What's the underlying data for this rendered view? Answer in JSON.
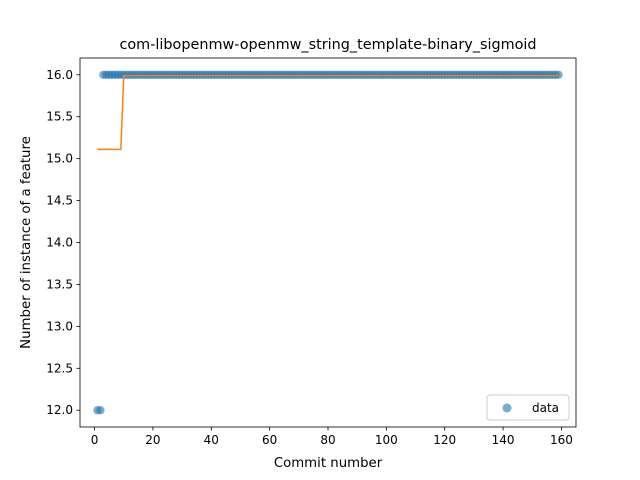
{
  "chart_data": {
    "type": "scatter",
    "title": "com-libopenmw-openmw_string_template-binary_sigmoid",
    "xlabel": "Commit number",
    "ylabel": "Number of instance of a feature",
    "xlim": [
      -5,
      165
    ],
    "ylim": [
      11.8,
      16.2
    ],
    "xticks": [
      0,
      20,
      40,
      60,
      80,
      100,
      120,
      140,
      160
    ],
    "yticks": [
      12.0,
      12.5,
      13.0,
      13.5,
      14.0,
      14.5,
      15.0,
      15.5,
      16.0
    ],
    "ytick_labels": [
      "12.0",
      "12.5",
      "13.0",
      "13.5",
      "14.0",
      "14.5",
      "15.0",
      "15.5",
      "16.0"
    ],
    "grid": false,
    "legend": {
      "position": "lower-right",
      "entries": [
        "data"
      ]
    },
    "series": [
      {
        "name": "data",
        "kind": "scatter",
        "color": "#1f77b4",
        "points": [
          [
            1,
            12.0
          ],
          [
            2,
            12.0
          ],
          [
            3,
            16.0
          ],
          [
            4,
            16.0
          ],
          [
            5,
            16.0
          ],
          [
            6,
            16.0
          ],
          [
            7,
            16.0
          ],
          [
            8,
            16.0
          ],
          [
            9,
            16.0
          ],
          [
            10,
            16.0
          ],
          [
            11,
            16.0
          ],
          [
            12,
            16.0
          ],
          [
            13,
            16.0
          ],
          [
            14,
            16.0
          ],
          [
            15,
            16.0
          ],
          [
            16,
            16.0
          ],
          [
            17,
            16.0
          ],
          [
            18,
            16.0
          ],
          [
            19,
            16.0
          ],
          [
            20,
            16.0
          ],
          [
            21,
            16.0
          ],
          [
            22,
            16.0
          ],
          [
            23,
            16.0
          ],
          [
            24,
            16.0
          ],
          [
            25,
            16.0
          ],
          [
            26,
            16.0
          ],
          [
            27,
            16.0
          ],
          [
            28,
            16.0
          ],
          [
            29,
            16.0
          ],
          [
            30,
            16.0
          ],
          [
            31,
            16.0
          ],
          [
            32,
            16.0
          ],
          [
            33,
            16.0
          ],
          [
            34,
            16.0
          ],
          [
            35,
            16.0
          ],
          [
            36,
            16.0
          ],
          [
            37,
            16.0
          ],
          [
            38,
            16.0
          ],
          [
            39,
            16.0
          ],
          [
            40,
            16.0
          ],
          [
            41,
            16.0
          ],
          [
            42,
            16.0
          ],
          [
            43,
            16.0
          ],
          [
            44,
            16.0
          ],
          [
            45,
            16.0
          ],
          [
            46,
            16.0
          ],
          [
            47,
            16.0
          ],
          [
            48,
            16.0
          ],
          [
            49,
            16.0
          ],
          [
            50,
            16.0
          ],
          [
            51,
            16.0
          ],
          [
            52,
            16.0
          ],
          [
            53,
            16.0
          ],
          [
            54,
            16.0
          ],
          [
            55,
            16.0
          ],
          [
            56,
            16.0
          ],
          [
            57,
            16.0
          ],
          [
            58,
            16.0
          ],
          [
            59,
            16.0
          ],
          [
            60,
            16.0
          ],
          [
            61,
            16.0
          ],
          [
            62,
            16.0
          ],
          [
            63,
            16.0
          ],
          [
            64,
            16.0
          ],
          [
            65,
            16.0
          ],
          [
            66,
            16.0
          ],
          [
            67,
            16.0
          ],
          [
            68,
            16.0
          ],
          [
            69,
            16.0
          ],
          [
            70,
            16.0
          ],
          [
            71,
            16.0
          ],
          [
            72,
            16.0
          ],
          [
            73,
            16.0
          ],
          [
            74,
            16.0
          ],
          [
            75,
            16.0
          ],
          [
            76,
            16.0
          ],
          [
            77,
            16.0
          ],
          [
            78,
            16.0
          ],
          [
            79,
            16.0
          ],
          [
            80,
            16.0
          ],
          [
            81,
            16.0
          ],
          [
            82,
            16.0
          ],
          [
            83,
            16.0
          ],
          [
            84,
            16.0
          ],
          [
            85,
            16.0
          ],
          [
            86,
            16.0
          ],
          [
            87,
            16.0
          ],
          [
            88,
            16.0
          ],
          [
            89,
            16.0
          ],
          [
            90,
            16.0
          ],
          [
            91,
            16.0
          ],
          [
            92,
            16.0
          ],
          [
            93,
            16.0
          ],
          [
            94,
            16.0
          ],
          [
            95,
            16.0
          ],
          [
            96,
            16.0
          ],
          [
            97,
            16.0
          ],
          [
            98,
            16.0
          ],
          [
            99,
            16.0
          ],
          [
            100,
            16.0
          ],
          [
            101,
            16.0
          ],
          [
            102,
            16.0
          ],
          [
            103,
            16.0
          ],
          [
            104,
            16.0
          ],
          [
            105,
            16.0
          ],
          [
            106,
            16.0
          ],
          [
            107,
            16.0
          ],
          [
            108,
            16.0
          ],
          [
            109,
            16.0
          ],
          [
            110,
            16.0
          ],
          [
            111,
            16.0
          ],
          [
            112,
            16.0
          ],
          [
            113,
            16.0
          ],
          [
            114,
            16.0
          ],
          [
            115,
            16.0
          ],
          [
            116,
            16.0
          ],
          [
            117,
            16.0
          ],
          [
            118,
            16.0
          ],
          [
            119,
            16.0
          ],
          [
            120,
            16.0
          ],
          [
            121,
            16.0
          ],
          [
            122,
            16.0
          ],
          [
            123,
            16.0
          ],
          [
            124,
            16.0
          ],
          [
            125,
            16.0
          ],
          [
            126,
            16.0
          ],
          [
            127,
            16.0
          ],
          [
            128,
            16.0
          ],
          [
            129,
            16.0
          ],
          [
            130,
            16.0
          ],
          [
            131,
            16.0
          ],
          [
            132,
            16.0
          ],
          [
            133,
            16.0
          ],
          [
            134,
            16.0
          ],
          [
            135,
            16.0
          ],
          [
            136,
            16.0
          ],
          [
            137,
            16.0
          ],
          [
            138,
            16.0
          ],
          [
            139,
            16.0
          ],
          [
            140,
            16.0
          ],
          [
            141,
            16.0
          ],
          [
            142,
            16.0
          ],
          [
            143,
            16.0
          ],
          [
            144,
            16.0
          ],
          [
            145,
            16.0
          ],
          [
            146,
            16.0
          ],
          [
            147,
            16.0
          ],
          [
            148,
            16.0
          ],
          [
            149,
            16.0
          ],
          [
            150,
            16.0
          ],
          [
            151,
            16.0
          ],
          [
            152,
            16.0
          ],
          [
            153,
            16.0
          ],
          [
            154,
            16.0
          ],
          [
            155,
            16.0
          ],
          [
            156,
            16.0
          ],
          [
            157,
            16.0
          ],
          [
            158,
            16.0
          ],
          [
            159,
            16.0
          ]
        ]
      },
      {
        "kind": "line",
        "color": "#ff7f0e",
        "points": [
          [
            1,
            15.11
          ],
          [
            9,
            15.11
          ],
          [
            10,
            15.99
          ],
          [
            159,
            15.99
          ]
        ]
      }
    ]
  }
}
